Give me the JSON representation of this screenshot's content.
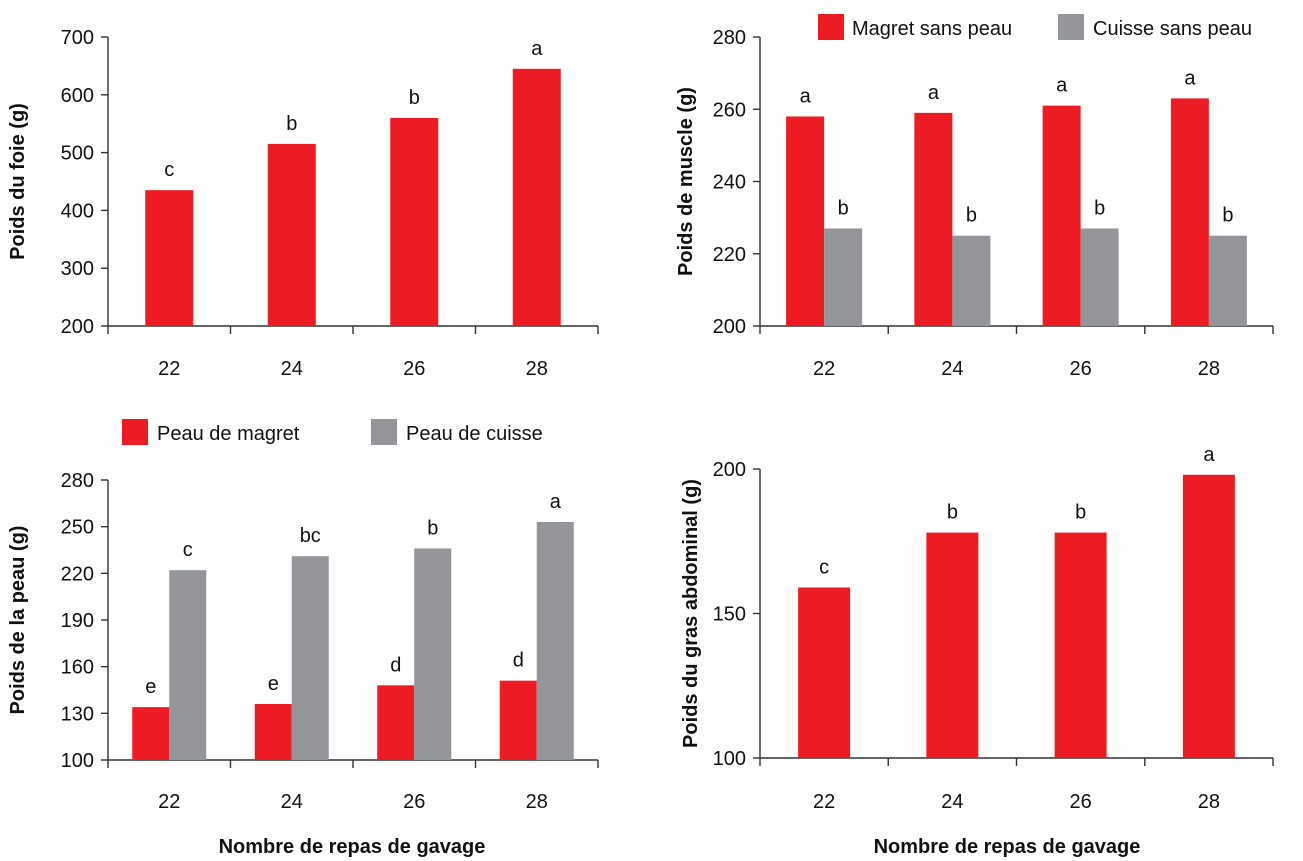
{
  "colors": {
    "primary": "#ed1c24",
    "secondary": "#939598"
  },
  "bottom_xlabels": [
    "Nombre de repas de gavage",
    "Nombre de repas de gavage"
  ],
  "chart_data": [
    {
      "id": "liver",
      "type": "bar",
      "categories": [
        "22",
        "24",
        "26",
        "28"
      ],
      "series": [
        {
          "values": [
            435,
            515,
            560,
            645
          ],
          "color": "#ed1c24",
          "sig": [
            "c",
            "b",
            "b",
            "a"
          ]
        }
      ],
      "ylabel": "Poids du foie (g)",
      "ylim": [
        200,
        700
      ],
      "yticks": [
        200,
        300,
        400,
        500,
        600,
        700
      ],
      "legend": null
    },
    {
      "id": "muscle",
      "type": "bar",
      "categories": [
        "22",
        "24",
        "26",
        "28"
      ],
      "series": [
        {
          "name": "Magret sans peau",
          "values": [
            258,
            259,
            261,
            263
          ],
          "color": "#ed1c24",
          "sig": [
            "a",
            "a",
            "a",
            "a"
          ]
        },
        {
          "name": "Cuisse sans peau",
          "values": [
            227,
            225,
            227,
            225
          ],
          "color": "#939598",
          "sig": [
            "b",
            "b",
            "b",
            "b"
          ]
        }
      ],
      "ylabel": "Poids de muscle (g)",
      "ylim": [
        200,
        280
      ],
      "yticks": [
        200,
        220,
        240,
        260,
        280
      ],
      "legend": "top"
    },
    {
      "id": "skin",
      "type": "bar",
      "categories": [
        "22",
        "24",
        "26",
        "28"
      ],
      "series": [
        {
          "name": "Peau de magret",
          "values": [
            134,
            136,
            148,
            151
          ],
          "color": "#ed1c24",
          "sig": [
            "e",
            "e",
            "d",
            "d"
          ]
        },
        {
          "name": "Peau de cuisse",
          "values": [
            222,
            231,
            236,
            253
          ],
          "color": "#939598",
          "sig": [
            "c",
            "bc",
            "b",
            "a"
          ]
        }
      ],
      "ylabel": "Poids de la peau (g)",
      "ylim": [
        100,
        280
      ],
      "yticks": [
        100,
        130,
        160,
        190,
        220,
        250,
        280
      ],
      "legend": "top"
    },
    {
      "id": "abdominal-fat",
      "type": "bar",
      "categories": [
        "22",
        "24",
        "26",
        "28"
      ],
      "series": [
        {
          "values": [
            159,
            178,
            178,
            198
          ],
          "color": "#ed1c24",
          "sig": [
            "c",
            "b",
            "b",
            "a"
          ]
        }
      ],
      "ylabel": "Poids du gras abdominal (g)",
      "ylim": [
        100,
        200
      ],
      "yticks": [
        100,
        150,
        200
      ],
      "legend": null
    }
  ]
}
